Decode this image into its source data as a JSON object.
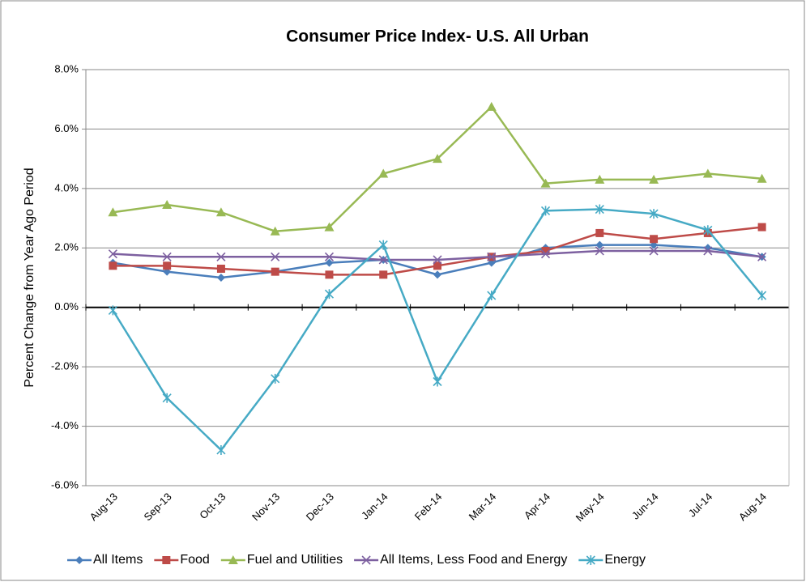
{
  "chart_data": {
    "type": "line",
    "title": "Consumer Price Index- U.S. All Urban",
    "y_label": "Percent Change from Year Ago Period",
    "categories": [
      "Aug-13",
      "Sep-13",
      "Oct-13",
      "Nov-13",
      "Dec-13",
      "Jan-14",
      "Feb-14",
      "Mar-14",
      "Apr-14",
      "May-14",
      "Jun-14",
      "Jul-14",
      "Aug-14"
    ],
    "series": [
      {
        "name": "All Items",
        "color": "#4a7ebb",
        "marker": "diamond",
        "values": [
          1.5,
          1.2,
          1.0,
          1.2,
          1.5,
          1.6,
          1.1,
          1.5,
          2.0,
          2.1,
          2.1,
          2.0,
          1.7
        ]
      },
      {
        "name": "Food",
        "color": "#be4b48",
        "marker": "square",
        "values": [
          1.4,
          1.4,
          1.3,
          1.2,
          1.1,
          1.1,
          1.4,
          1.7,
          1.9,
          2.5,
          2.3,
          2.5,
          2.7
        ]
      },
      {
        "name": "Fuel and Utilities",
        "color": "#98b954",
        "marker": "triangle",
        "values": [
          3.2,
          3.45,
          3.2,
          2.56,
          2.7,
          4.5,
          5.0,
          6.75,
          4.17,
          4.3,
          4.3,
          4.5,
          4.33
        ]
      },
      {
        "name": "All Items, Less Food and Energy",
        "color": "#7d60a0",
        "marker": "x",
        "values": [
          1.8,
          1.7,
          1.7,
          1.7,
          1.7,
          1.6,
          1.6,
          1.7,
          1.8,
          1.9,
          1.9,
          1.9,
          1.7
        ]
      },
      {
        "name": "Energy",
        "color": "#46aac5",
        "marker": "star",
        "values": [
          -0.1,
          -3.05,
          -4.8,
          -2.4,
          0.45,
          2.1,
          -2.5,
          0.4,
          3.25,
          3.3,
          3.15,
          2.6,
          0.4
        ]
      }
    ],
    "ylim": [
      -6,
      8
    ],
    "yticks": [
      {
        "value": -6,
        "label": "-6.0%"
      },
      {
        "value": -4,
        "label": "-4.0%"
      },
      {
        "value": -2,
        "label": "-2.0%"
      },
      {
        "value": 0,
        "label": "0.0%"
      },
      {
        "value": 2,
        "label": "2.0%"
      },
      {
        "value": 4,
        "label": "4.0%"
      },
      {
        "value": 6,
        "label": "6.0%"
      },
      {
        "value": 8,
        "label": "8.0%"
      }
    ],
    "grid": true,
    "legend": "bottom"
  }
}
